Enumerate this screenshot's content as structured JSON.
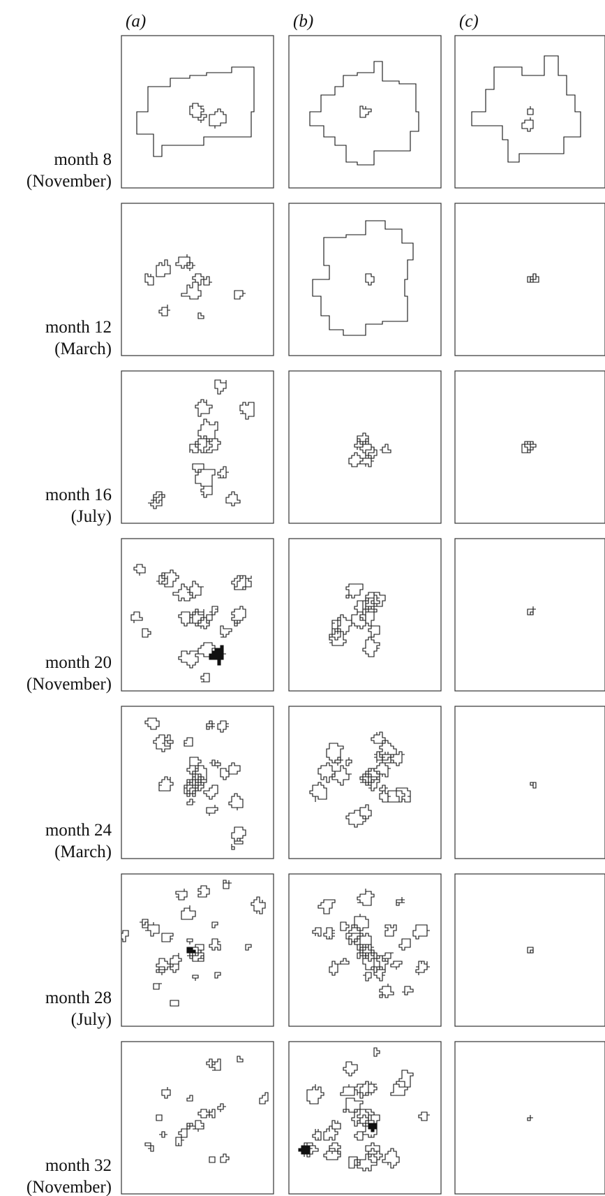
{
  "columns": [
    "(a)",
    "(b)",
    "(c)"
  ],
  "rows": [
    {
      "month": "month 8",
      "season": "(November)"
    },
    {
      "month": "month 12",
      "season": "(March)"
    },
    {
      "month": "month 16",
      "season": "(July)"
    },
    {
      "month": "month 20",
      "season": "(November)"
    },
    {
      "month": "month 24",
      "season": "(March)"
    },
    {
      "month": "month 28",
      "season": "(July)"
    },
    {
      "month": "month 32",
      "season": "(November)"
    }
  ]
}
